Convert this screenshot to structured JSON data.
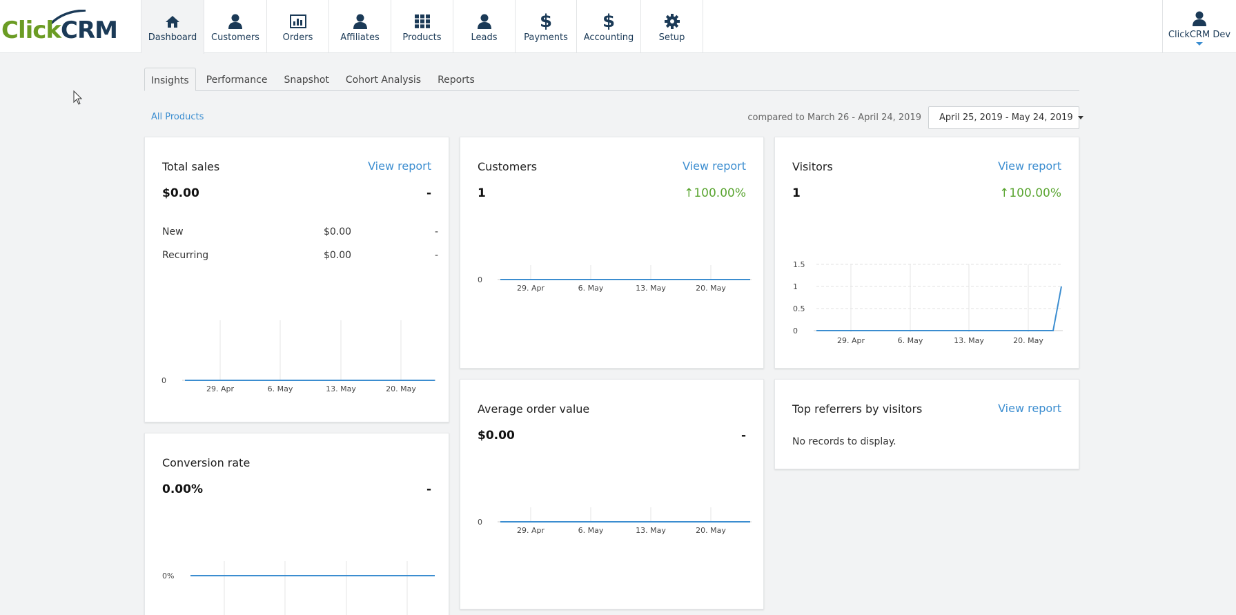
{
  "app": {
    "logo_text_a": "Click",
    "logo_text_b": "CRM"
  },
  "nav": [
    {
      "label": "Dashboard",
      "icon": "home-icon",
      "active": true
    },
    {
      "label": "Customers",
      "icon": "user-icon"
    },
    {
      "label": "Orders",
      "icon": "bar-chart-icon"
    },
    {
      "label": "Affiliates",
      "icon": "user-icon"
    },
    {
      "label": "Products",
      "icon": "grid-icon"
    },
    {
      "label": "Leads",
      "icon": "user-icon"
    },
    {
      "label": "Payments",
      "icon": "dollar-icon"
    },
    {
      "label": "Accounting",
      "icon": "dollar-icon"
    },
    {
      "label": "Setup",
      "icon": "gear-icon"
    }
  ],
  "user": {
    "name": "ClickCRM Dev"
  },
  "tabs": [
    "Insights",
    "Performance",
    "Snapshot",
    "Cohort Analysis",
    "Reports"
  ],
  "filters": {
    "product_filter": "All Products",
    "compare_text": "compared to March 26 - April 24, 2019",
    "date_range": "April 25, 2019 - May 24, 2019"
  },
  "cards": {
    "total_sales": {
      "title": "Total sales",
      "link": "View report",
      "value": "$0.00",
      "delta": "-",
      "rows": [
        {
          "label": "New",
          "value": "$0.00",
          "delta": "-"
        },
        {
          "label": "Recurring",
          "value": "$0.00",
          "delta": "-"
        }
      ]
    },
    "customers": {
      "title": "Customers",
      "link": "View report",
      "value": "1",
      "delta": "100.00%"
    },
    "visitors": {
      "title": "Visitors",
      "link": "View report",
      "value": "1",
      "delta": "100.00%"
    },
    "avg_order": {
      "title": "Average order value",
      "value": "$0.00",
      "delta": "-"
    },
    "top_referrers": {
      "title": "Top referrers by visitors",
      "link": "View report",
      "empty": "No records to display."
    },
    "conversion": {
      "title": "Conversion rate",
      "value": "0.00%",
      "delta": "-"
    }
  },
  "chart_data": [
    {
      "type": "line",
      "name": "total_sales",
      "x_ticks": [
        "29. Apr",
        "6. May",
        "13. May",
        "20. May"
      ],
      "y_ticks": [
        "0"
      ],
      "series": [
        {
          "values": [
            0,
            0,
            0,
            0,
            0
          ]
        }
      ]
    },
    {
      "type": "line",
      "name": "customers",
      "x_ticks": [
        "29. Apr",
        "6. May",
        "13. May",
        "20. May"
      ],
      "y_ticks": [
        "0"
      ],
      "series": [
        {
          "values": [
            0,
            0,
            0,
            0,
            0
          ]
        }
      ]
    },
    {
      "type": "line",
      "name": "visitors",
      "x_ticks": [
        "29. Apr",
        "6. May",
        "13. May",
        "20. May"
      ],
      "y_ticks": [
        "0",
        "0.5",
        "1",
        "1.5"
      ],
      "ylim": [
        0,
        1.5
      ],
      "series": [
        {
          "values": [
            0,
            0,
            0,
            0,
            0,
            0,
            1
          ]
        }
      ]
    },
    {
      "type": "line",
      "name": "avg_order",
      "x_ticks": [
        "29. Apr",
        "6. May",
        "13. May",
        "20. May"
      ],
      "y_ticks": [
        "0"
      ],
      "series": [
        {
          "values": [
            0,
            0,
            0,
            0,
            0
          ]
        }
      ]
    },
    {
      "type": "line",
      "name": "conversion",
      "x_ticks": [],
      "y_ticks": [
        "0%"
      ],
      "series": [
        {
          "values": [
            0,
            0,
            0,
            0,
            0
          ]
        }
      ]
    }
  ],
  "colors": {
    "accent": "#3b8dd0",
    "nav_text": "#1b3a57",
    "positive": "#5aa531",
    "brand_green": "#6b9c24"
  }
}
